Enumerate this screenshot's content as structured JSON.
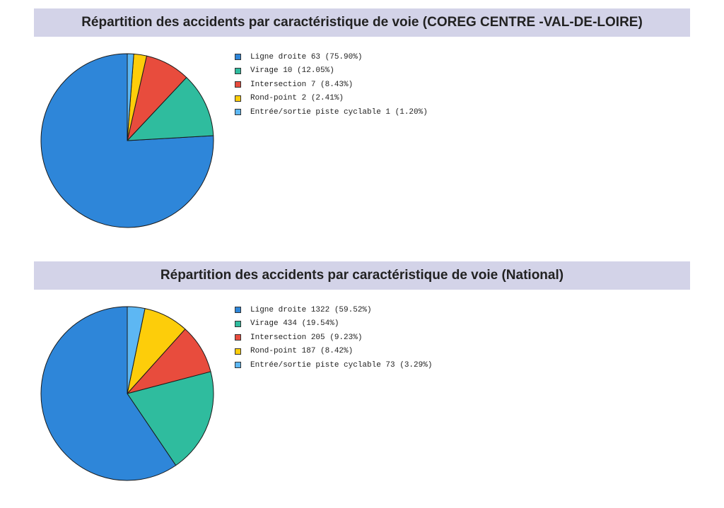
{
  "chart_data": [
    {
      "type": "pie",
      "title": "Répartition des accidents par caractéristique de voie (COREG CENTRE -VAL-DE-LOIRE)",
      "categories": [
        "Ligne droite",
        "Virage",
        "Intersection",
        "Rond-point",
        "Entrée/sortie piste cyclable"
      ],
      "values": [
        63,
        10,
        7,
        2,
        1
      ],
      "legend": [
        "Ligne droite 63 (75.90%)",
        "Virage 10 (12.05%)",
        "Intersection 7 (8.43%)",
        "Rond-point 2 (2.41%)",
        "Entrée/sortie piste cyclable 1 (1.20%)"
      ],
      "colors": [
        "#2e86d9",
        "#2fbc9e",
        "#e84c3d",
        "#fdcd0a",
        "#5db7f3"
      ],
      "legend_position": "right"
    },
    {
      "type": "pie",
      "title": "Répartition des accidents par caractéristique de voie (National)",
      "categories": [
        "Ligne droite",
        "Virage",
        "Intersection",
        "Rond-point",
        "Entrée/sortie piste cyclable"
      ],
      "values": [
        1322,
        434,
        205,
        187,
        73
      ],
      "legend": [
        "Ligne droite 1322 (59.52%)",
        "Virage 434 (19.54%)",
        "Intersection 205 (9.23%)",
        "Rond-point 187 (8.42%)",
        "Entrée/sortie piste cyclable 73 (3.29%)"
      ],
      "colors": [
        "#2e86d9",
        "#2fbc9e",
        "#e84c3d",
        "#fdcd0a",
        "#5db7f3"
      ],
      "legend_position": "right"
    }
  ]
}
